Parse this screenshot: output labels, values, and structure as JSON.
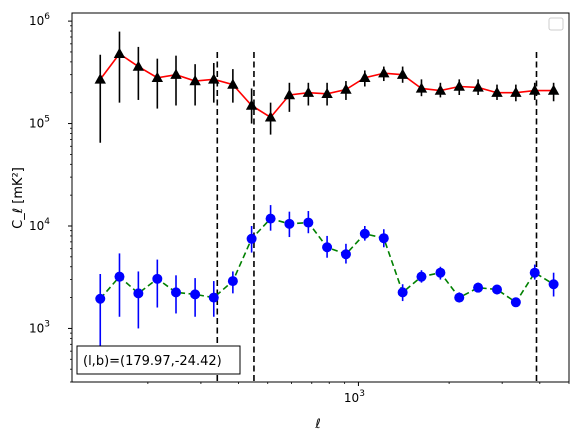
{
  "chart_data": {
    "type": "scatter",
    "xlabel": "ℓ",
    "ylabel": "C_ℓ [mK²]",
    "xscale": "log",
    "yscale": "log",
    "xlim": [
      112,
      5000
    ],
    "ylim": [
      300,
      1200000
    ],
    "x_ticks": [
      {
        "value": 1000,
        "base": "10",
        "exp": "3"
      }
    ],
    "y_ticks": [
      {
        "value": 1000,
        "base": "10",
        "exp": "3"
      },
      {
        "value": 10000,
        "base": "10",
        "exp": "4"
      },
      {
        "value": 100000,
        "base": "10",
        "exp": "5"
      },
      {
        "value": 1000000,
        "base": "10",
        "exp": "6"
      }
    ],
    "vlines": [
      340,
      450,
      3900
    ],
    "legend": "top-right",
    "grid": false,
    "annotation": "(l,b)=(179.97,-24.42)",
    "x": [
      139,
      161,
      186,
      215,
      248,
      287,
      331,
      383,
      442,
      511,
      590,
      682,
      787,
      909,
      1050,
      1214,
      1402,
      1619,
      1871,
      2161,
      2496,
      2884,
      3331,
      3848,
      4445
    ],
    "series": [
      {
        "color": "#ff0000",
        "marker": "triangle",
        "marker_color": "#000000",
        "y": [
          270000,
          480000,
          360000,
          280000,
          300000,
          260000,
          270000,
          240000,
          150000,
          115000,
          190000,
          200000,
          195000,
          215000,
          280000,
          310000,
          300000,
          220000,
          210000,
          230000,
          225000,
          200000,
          200000,
          210000,
          210000
        ],
        "ylow": [
          65000,
          160000,
          170000,
          140000,
          150000,
          150000,
          160000,
          160000,
          100000,
          78000,
          130000,
          150000,
          150000,
          170000,
          230000,
          260000,
          250000,
          185000,
          180000,
          190000,
          190000,
          170000,
          165000,
          170000,
          165000
        ],
        "yhigh": [
          470000,
          790000,
          560000,
          430000,
          460000,
          380000,
          390000,
          340000,
          220000,
          160000,
          250000,
          250000,
          250000,
          260000,
          330000,
          360000,
          360000,
          270000,
          250000,
          270000,
          270000,
          240000,
          240000,
          250000,
          250000
        ]
      },
      {
        "color": "#008000",
        "marker": "circle",
        "marker_color": "#0000ff",
        "linestyle": "dashed",
        "y": [
          1950,
          3200,
          2200,
          3050,
          2250,
          2150,
          2000,
          2900,
          7500,
          11800,
          10500,
          10800,
          6200,
          5300,
          8400,
          7600,
          2250,
          3200,
          3500,
          2000,
          2500,
          2400,
          1800,
          3500,
          2700
        ],
        "ylow": [
          650,
          1300,
          1000,
          1600,
          1400,
          1300,
          1300,
          2200,
          5500,
          9000,
          7800,
          8500,
          4900,
          4300,
          7200,
          6200,
          1850,
          2800,
          3000,
          1800,
          2250,
          2150,
          1650,
          3000,
          2050
        ],
        "yhigh": [
          3400,
          5400,
          3600,
          4700,
          3300,
          3100,
          2900,
          3600,
          10000,
          16000,
          13800,
          14000,
          8000,
          6700,
          10000,
          9300,
          2700,
          3700,
          4000,
          2250,
          2800,
          2650,
          2000,
          4200,
          3500
        ]
      }
    ]
  }
}
